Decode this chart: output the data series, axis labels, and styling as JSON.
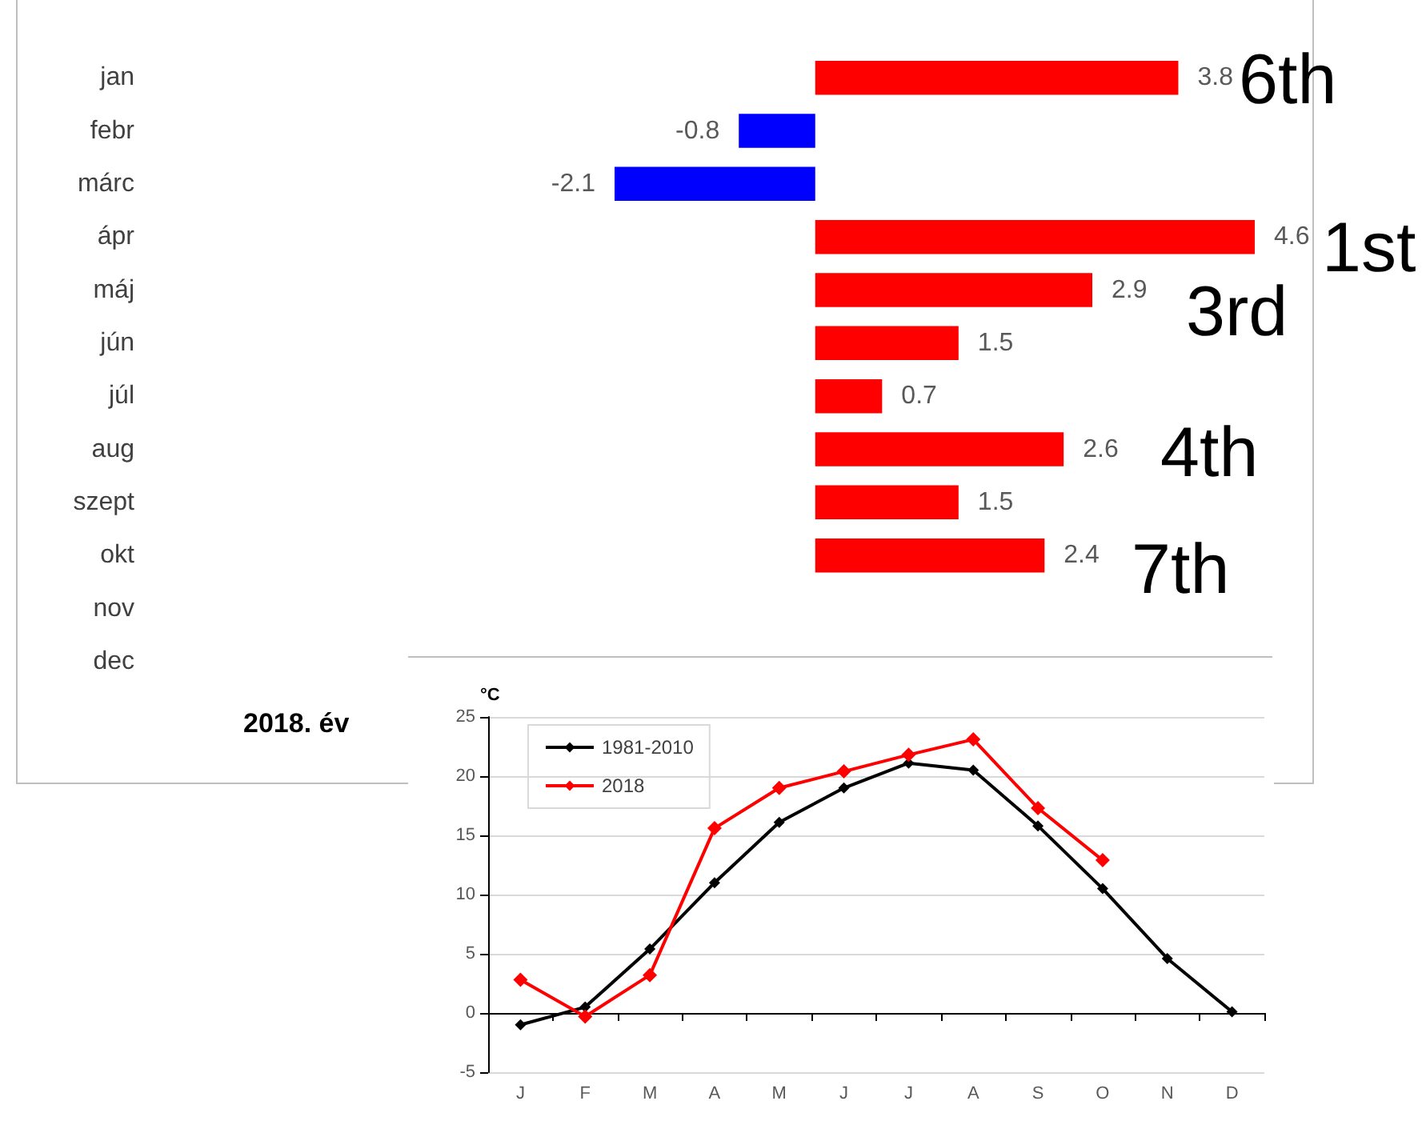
{
  "chart_data": [
    {
      "type": "bar",
      "orientation": "horizontal",
      "categories": [
        "jan",
        "febr",
        "márc",
        "ápr",
        "máj",
        "jún",
        "júl",
        "aug",
        "szept",
        "okt",
        "nov",
        "dec"
      ],
      "values": [
        3.8,
        -0.8,
        -2.1,
        4.6,
        2.9,
        1.5,
        0.7,
        2.6,
        1.5,
        2.4,
        null,
        null
      ],
      "colors": [
        "#ff0000",
        "#0000ff",
        "#0000ff",
        "#ff0000",
        "#ff0000",
        "#ff0000",
        "#ff0000",
        "#ff0000",
        "#ff0000",
        "#ff0000",
        "#ff0000",
        "#ff0000"
      ],
      "data_labels": true,
      "annotations": [
        "6th",
        "1st",
        "3rd",
        "4th",
        "7th",
        "2018. év"
      ]
    },
    {
      "type": "line",
      "ylabel": "°C",
      "categories": [
        "J",
        "F",
        "M",
        "A",
        "M",
        "J",
        "J",
        "A",
        "S",
        "O",
        "N",
        "D"
      ],
      "series": [
        {
          "name": "1981-2010",
          "color": "#000000",
          "values": [
            -1.0,
            0.5,
            5.4,
            11.0,
            16.1,
            19.0,
            21.1,
            20.5,
            15.8,
            10.5,
            4.6,
            0.1
          ]
        },
        {
          "name": "2018",
          "color": "#ff0000",
          "values": [
            2.8,
            -0.3,
            3.2,
            15.6,
            19.0,
            20.4,
            21.8,
            23.1,
            17.3,
            12.9,
            null,
            null
          ]
        }
      ],
      "ylim": [
        -5,
        25
      ],
      "yticks": [
        -5,
        0,
        5,
        10,
        15,
        20,
        25
      ],
      "grid": "y",
      "legend": "top left",
      "marker": "diamond",
      "line_style": "solid"
    }
  ]
}
